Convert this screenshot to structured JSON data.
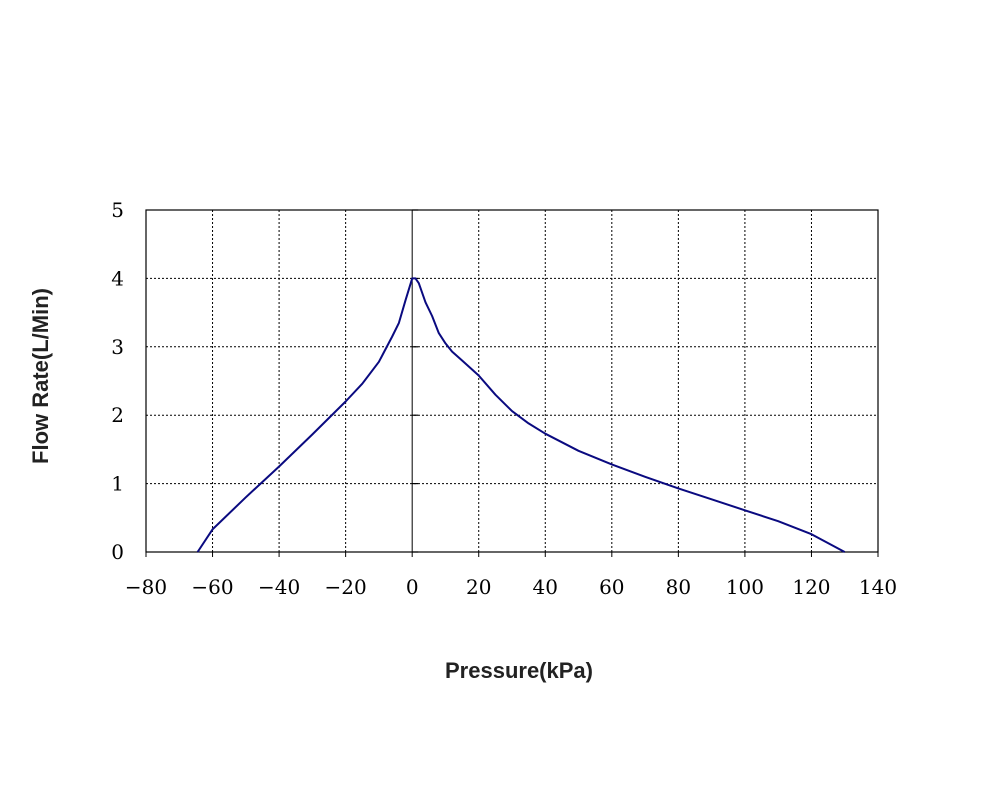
{
  "chart_data": {
    "type": "line",
    "title": "",
    "xlabel": "Pressure(kPa)",
    "ylabel": "Flow Rate(L/Min)",
    "xlim": [
      -80,
      140
    ],
    "ylim": [
      0,
      5
    ],
    "x_ticks": [
      -80,
      -60,
      -40,
      -20,
      0,
      20,
      40,
      60,
      80,
      100,
      120,
      140
    ],
    "x_tick_labels": [
      "−80",
      "−60",
      "−40",
      "−20",
      "0",
      "20",
      "40",
      "60",
      "80",
      "100",
      "120",
      "140"
    ],
    "y_ticks": [
      0,
      1,
      2,
      3,
      4,
      5
    ],
    "y_tick_labels": [
      "0",
      "1",
      "2",
      "3",
      "4",
      "5"
    ],
    "grid": true,
    "grid_style": "dotted",
    "line_color": "#0a0a80",
    "grid_color": "#000000",
    "series": [
      {
        "name": "",
        "x": [
          -64.5,
          -60,
          -50,
          -40,
          -30,
          -20,
          -15,
          -10,
          -6,
          -4,
          -2,
          0,
          1,
          2,
          4,
          6,
          8,
          10,
          12,
          15,
          20,
          25,
          30,
          35,
          40,
          50,
          60,
          70,
          80,
          90,
          100,
          110,
          120,
          130
        ],
        "y": [
          0,
          0.33,
          0.8,
          1.25,
          1.72,
          2.2,
          2.46,
          2.78,
          3.15,
          3.35,
          3.68,
          4.0,
          4.0,
          3.93,
          3.65,
          3.45,
          3.2,
          3.05,
          2.93,
          2.8,
          2.58,
          2.3,
          2.06,
          1.88,
          1.73,
          1.48,
          1.28,
          1.1,
          0.93,
          0.77,
          0.61,
          0.45,
          0.26,
          0
        ]
      }
    ]
  }
}
